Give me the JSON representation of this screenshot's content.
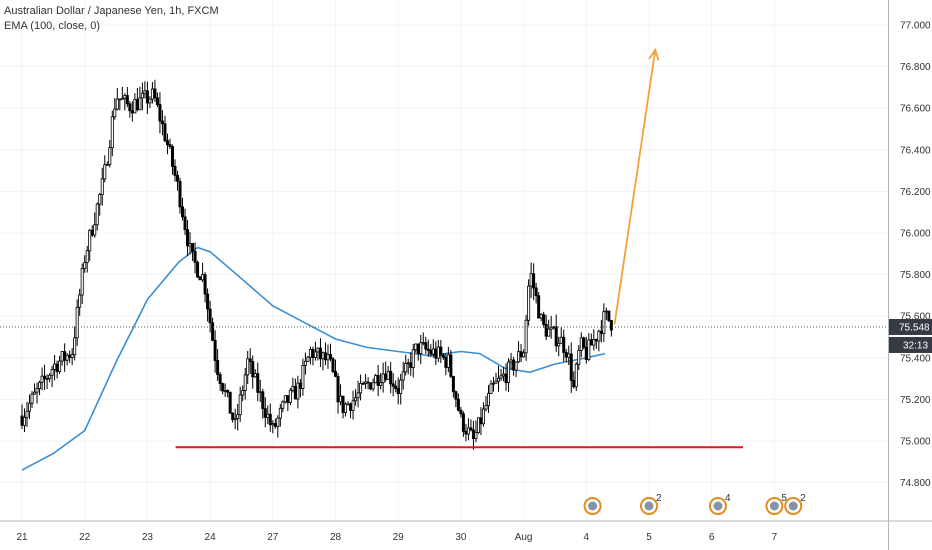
{
  "header": {
    "title": "Australian Dollar / Japanese Yen, 1h, FXCM",
    "indicator": "EMA (100, close, 0)"
  },
  "colors": {
    "up_candle": "#ffffff",
    "down_candle": "#000000",
    "wick": "#000000",
    "ema": "#3a8fd6",
    "support": "#e0151f",
    "arrow": "#f4a13b",
    "price_tag": "#363a45",
    "axis_text": "#333333",
    "event_icon": "#e58b1c"
  },
  "chart_data": {
    "type": "candlestick",
    "title": "Australian Dollar / Japanese Yen, 1h, FXCM",
    "ylim": [
      74.62,
      77.12
    ],
    "y_ticks": [
      "74.800",
      "75.000",
      "75.200",
      "75.400",
      "75.600",
      "75.800",
      "76.000",
      "76.200",
      "76.400",
      "76.600",
      "76.800",
      "77.000"
    ],
    "x_ticks": [
      "21",
      "22",
      "23",
      "24",
      "27",
      "28",
      "29",
      "30",
      "Aug",
      "4",
      "5",
      "6",
      "7"
    ],
    "last_price": "75.548",
    "countdown": "32:13",
    "grid": true,
    "series": [
      {
        "name": "EMA (100, close, 0)",
        "type": "line",
        "values": [
          [
            0,
            74.86
          ],
          [
            0.5,
            74.94
          ],
          [
            1,
            75.05
          ],
          [
            1.5,
            75.38
          ],
          [
            2,
            75.68
          ],
          [
            2.5,
            75.86
          ],
          [
            2.8,
            75.93
          ],
          [
            3,
            75.91
          ],
          [
            3.5,
            75.78
          ],
          [
            4,
            75.65
          ],
          [
            4.5,
            75.57
          ],
          [
            5,
            75.49
          ],
          [
            5.5,
            75.45
          ],
          [
            6,
            75.43
          ],
          [
            6.5,
            75.41
          ],
          [
            7,
            75.43
          ],
          [
            7.3,
            75.42
          ],
          [
            7.7,
            75.35
          ],
          [
            8.1,
            75.33
          ],
          [
            8.5,
            75.37
          ],
          [
            9,
            75.4
          ],
          [
            9.3,
            75.42
          ]
        ]
      },
      {
        "name": "OHLC",
        "type": "candlestick",
        "key_levels": [
          [
            0,
            75.12
          ],
          [
            0.5,
            75.36
          ],
          [
            0.8,
            75.43
          ],
          [
            1.0,
            75.88
          ],
          [
            1.3,
            76.25
          ],
          [
            1.5,
            76.66
          ],
          [
            1.7,
            76.61
          ],
          [
            2.1,
            76.66
          ],
          [
            2.3,
            76.45
          ],
          [
            2.5,
            76.2
          ],
          [
            2.7,
            75.88
          ],
          [
            2.9,
            75.78
          ],
          [
            3.1,
            75.37
          ],
          [
            3.4,
            75.07
          ],
          [
            3.6,
            75.38
          ],
          [
            4.0,
            75.05
          ],
          [
            4.2,
            75.18
          ],
          [
            4.4,
            75.25
          ],
          [
            4.6,
            75.43
          ],
          [
            4.9,
            75.38
          ],
          [
            5.1,
            75.16
          ],
          [
            5.3,
            75.2
          ],
          [
            5.5,
            75.27
          ],
          [
            5.8,
            75.34
          ],
          [
            6.0,
            75.25
          ],
          [
            6.3,
            75.45
          ],
          [
            6.6,
            75.42
          ],
          [
            6.8,
            75.38
          ],
          [
            7.0,
            75.1
          ],
          [
            7.2,
            75.0
          ],
          [
            7.5,
            75.25
          ],
          [
            7.8,
            75.35
          ],
          [
            8.0,
            75.44
          ],
          [
            8.1,
            75.82
          ],
          [
            8.3,
            75.55
          ],
          [
            8.6,
            75.48
          ],
          [
            8.7,
            75.43
          ],
          [
            8.8,
            75.25
          ],
          [
            8.9,
            75.46
          ],
          [
            9.0,
            75.42
          ],
          [
            9.15,
            75.5
          ],
          [
            9.3,
            75.6
          ],
          [
            9.4,
            75.57
          ]
        ]
      }
    ],
    "annotations": {
      "support_line": {
        "level": 74.97,
        "x_start": 2.45,
        "x_end": 11.5
      },
      "arrow": {
        "from": [
          9.45,
          75.56
        ],
        "to": [
          10.1,
          76.88
        ]
      }
    },
    "events": [
      {
        "day_index": 9.1,
        "badge": ""
      },
      {
        "day_index": 10.0,
        "badge": "2"
      },
      {
        "day_index": 11.1,
        "badge": "4"
      },
      {
        "day_index": 12.0,
        "badge": "5"
      },
      {
        "day_index": 12.3,
        "badge": "2"
      }
    ]
  }
}
